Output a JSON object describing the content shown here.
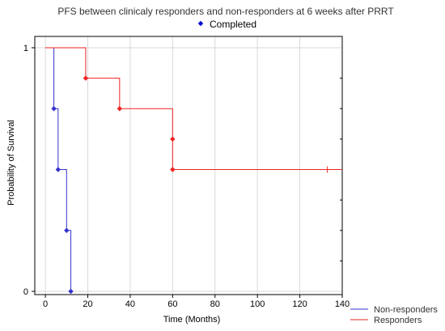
{
  "chart_data": {
    "type": "line",
    "title": "PFS between clinicaly responders and non-responders at 6 weeks after PRRT",
    "top_legend": {
      "marker": "diamond",
      "label": "Completed",
      "color": "#0000cc"
    },
    "xlabel": "Time (Months)",
    "ylabel": "Probability of Survival",
    "xlim": [
      -5,
      140
    ],
    "ylim": [
      0,
      1
    ],
    "x_ticks": [
      0,
      20,
      40,
      60,
      80,
      100,
      120,
      140
    ],
    "y_ticks": [
      0,
      1
    ],
    "y_minor_ticks": [
      0.125,
      0.25,
      0.375,
      0.5,
      0.625,
      0.75,
      0.875
    ],
    "grid": true,
    "legend_position": "bottom-right, outside",
    "series": [
      {
        "name": "Non-responders",
        "color": "#3333cc",
        "step_points": [
          [
            0,
            1
          ],
          [
            4,
            1
          ],
          [
            4,
            0.75
          ],
          [
            6,
            0.75
          ],
          [
            6,
            0.5
          ],
          [
            10,
            0.5
          ],
          [
            10,
            0.25
          ],
          [
            12,
            0.25
          ],
          [
            12,
            0
          ]
        ],
        "markers": [
          [
            4,
            0.75
          ],
          [
            6,
            0.5
          ],
          [
            10,
            0.25
          ],
          [
            12,
            0
          ]
        ]
      },
      {
        "name": "Responders",
        "color": "#ee2222",
        "step_points": [
          [
            0,
            1
          ],
          [
            19,
            1
          ],
          [
            19,
            0.875
          ],
          [
            35,
            0.875
          ],
          [
            35,
            0.75
          ],
          [
            60,
            0.75
          ],
          [
            60,
            0.5
          ],
          [
            140,
            0.5
          ]
        ],
        "markers": [
          [
            19,
            0.875
          ],
          [
            35,
            0.75
          ],
          [
            60,
            0.625
          ],
          [
            60,
            0.5
          ]
        ],
        "censored": [
          [
            133,
            0.5
          ]
        ]
      }
    ]
  }
}
